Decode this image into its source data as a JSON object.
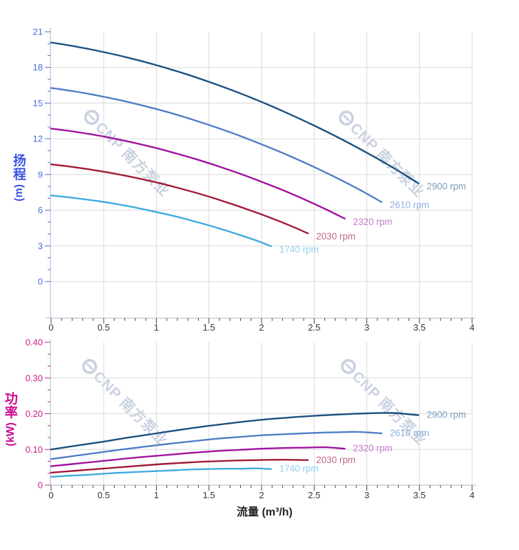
{
  "watermark": {
    "text": "CNP 南方泵业",
    "logo": "cnp-ring-logo",
    "color": "#c8d0e0"
  },
  "charts": [
    {
      "name": "head-curve-chart",
      "type": "line",
      "y_axis": {
        "title_chars": [
          "扬",
          "程"
        ],
        "unit": "(m)",
        "label_color": "#4a6cd9",
        "title_color": "#3c55e2",
        "tick_labels": [
          "0",
          "3",
          "6",
          "9",
          "12",
          "15",
          "18",
          "21"
        ],
        "tick_values": [
          0,
          3,
          6,
          9,
          12,
          15,
          18,
          21
        ],
        "minor_step": 1,
        "max": 21
      },
      "x_axis": {
        "tick_labels": [
          "0",
          "0.5",
          "1",
          "1.5",
          "2",
          "2.5",
          "3",
          "3.5",
          "4"
        ],
        "tick_values": [
          0,
          0.5,
          1,
          1.5,
          2,
          2.5,
          3,
          3.5,
          4
        ],
        "max": 4
      },
      "series": [
        {
          "label": "2900 rpm",
          "color": "#1a5080",
          "label_color": "#7d9cbe",
          "q": [
            0,
            0.25,
            0.5,
            0.75,
            1.0,
            1.25,
            1.5,
            1.75,
            2.0,
            2.25,
            2.5,
            2.75,
            3.0,
            3.25,
            3.49
          ],
          "v": [
            20.1,
            19.73,
            19.29,
            18.78,
            18.19,
            17.53,
            16.79,
            15.98,
            15.1,
            14.14,
            13.11,
            12.01,
            10.83,
            9.57,
            8.26
          ]
        },
        {
          "label": "2610 rpm",
          "color": "#4f7dc8",
          "label_color": "#91b0e0",
          "q": [
            0,
            0.225,
            0.45,
            0.675,
            0.9,
            1.125,
            1.35,
            1.575,
            1.8,
            2.025,
            2.25,
            2.475,
            2.7,
            2.925,
            3.14
          ],
          "v": [
            16.28,
            15.98,
            15.62,
            15.21,
            14.73,
            14.2,
            13.6,
            12.94,
            12.23,
            11.45,
            10.62,
            9.73,
            8.77,
            7.75,
            6.69
          ]
        },
        {
          "label": "2320 rpm",
          "color": "#a111a0",
          "label_color": "#c479ce",
          "q": [
            0,
            0.2,
            0.4,
            0.6,
            0.8,
            1.0,
            1.2,
            1.4,
            1.6,
            1.8,
            2.0,
            2.2,
            2.4,
            2.6,
            2.79
          ],
          "v": [
            12.86,
            12.63,
            12.35,
            12.02,
            11.64,
            11.22,
            10.74,
            10.23,
            9.66,
            9.05,
            8.39,
            7.69,
            6.93,
            6.12,
            5.29
          ]
        },
        {
          "label": "2030 rpm",
          "color": "#a01a38",
          "label_color": "#c2697f",
          "q": [
            0,
            0.175,
            0.35,
            0.525,
            0.7,
            0.875,
            1.05,
            1.225,
            1.4,
            1.575,
            1.75,
            1.925,
            2.1,
            2.275,
            2.44
          ],
          "v": [
            9.85,
            9.67,
            9.45,
            9.2,
            8.91,
            8.59,
            8.23,
            7.83,
            7.4,
            6.93,
            6.42,
            5.88,
            5.31,
            4.69,
            4.05
          ]
        },
        {
          "label": "1740 rpm",
          "color": "#3fabe0",
          "label_color": "#8fd0f0",
          "q": [
            0,
            0.15,
            0.3,
            0.45,
            0.6,
            0.75,
            0.9,
            1.05,
            1.2,
            1.35,
            1.5,
            1.65,
            1.8,
            1.95,
            2.09
          ],
          "v": [
            7.24,
            7.1,
            6.94,
            6.76,
            6.55,
            6.31,
            6.04,
            5.75,
            5.44,
            5.09,
            4.72,
            4.32,
            3.9,
            3.45,
            2.97
          ]
        }
      ]
    },
    {
      "name": "power-curve-chart",
      "type": "line",
      "y_axis": {
        "title_chars": [
          "功",
          "率"
        ],
        "unit": "(kW)",
        "label_color": "#cb1d8e",
        "title_color": "#cc0d92",
        "tick_labels": [
          "0",
          "0.10",
          "0.20",
          "0.30",
          "0.40"
        ],
        "tick_values": [
          0,
          0.1,
          0.2,
          0.3,
          0.4
        ],
        "max": 0.4
      },
      "x_axis": {
        "title": "流量 (m³/h)",
        "tick_labels": [
          "0",
          "0.5",
          "1",
          "1.5",
          "2",
          "2.5",
          "3",
          "3.5",
          "4"
        ],
        "tick_values": [
          0,
          0.5,
          1,
          1.5,
          2,
          2.5,
          3,
          3.5,
          4
        ],
        "max": 4
      },
      "series": [
        {
          "label": "2900 rpm",
          "color": "#1a5080",
          "label_color": "#7d9cbe",
          "q": [
            0,
            0.25,
            0.5,
            0.75,
            1.0,
            1.25,
            1.5,
            1.75,
            2.0,
            2.25,
            2.5,
            2.75,
            3.0,
            3.25,
            3.49
          ],
          "v": [
            0.1,
            0.111,
            0.122,
            0.134,
            0.145,
            0.156,
            0.166,
            0.175,
            0.183,
            0.189,
            0.194,
            0.198,
            0.201,
            0.202,
            0.196
          ]
        },
        {
          "label": "2610 rpm",
          "color": "#4f7dc8",
          "label_color": "#91b0e0",
          "q": [
            0,
            0.225,
            0.45,
            0.675,
            0.9,
            1.125,
            1.35,
            1.575,
            1.8,
            2.025,
            2.25,
            2.475,
            2.7,
            2.925,
            3.14
          ],
          "v": [
            0.073,
            0.082,
            0.091,
            0.1,
            0.108,
            0.116,
            0.123,
            0.13,
            0.135,
            0.14,
            0.143,
            0.146,
            0.148,
            0.149,
            0.145
          ]
        },
        {
          "label": "2320 rpm",
          "color": "#a111a0",
          "label_color": "#c479ce",
          "q": [
            0,
            0.2,
            0.4,
            0.6,
            0.8,
            1.0,
            1.2,
            1.4,
            1.6,
            1.8,
            2.0,
            2.2,
            2.4,
            2.6,
            2.79
          ],
          "v": [
            0.053,
            0.059,
            0.065,
            0.071,
            0.077,
            0.082,
            0.087,
            0.092,
            0.096,
            0.099,
            0.102,
            0.104,
            0.105,
            0.106,
            0.102
          ]
        },
        {
          "label": "2030 rpm",
          "color": "#a01a38",
          "label_color": "#c2697f",
          "q": [
            0,
            0.175,
            0.35,
            0.525,
            0.7,
            0.875,
            1.05,
            1.225,
            1.4,
            1.575,
            1.75,
            1.925,
            2.1,
            2.275,
            2.44
          ],
          "v": [
            0.035,
            0.039,
            0.043,
            0.047,
            0.051,
            0.055,
            0.059,
            0.062,
            0.065,
            0.067,
            0.069,
            0.07,
            0.071,
            0.071,
            0.07
          ]
        },
        {
          "label": "1740 rpm",
          "color": "#3fabe0",
          "label_color": "#8fd0f0",
          "q": [
            0,
            0.15,
            0.3,
            0.45,
            0.6,
            0.75,
            0.9,
            1.05,
            1.2,
            1.35,
            1.5,
            1.65,
            1.8,
            1.95,
            2.09
          ],
          "v": [
            0.023,
            0.026,
            0.028,
            0.031,
            0.034,
            0.036,
            0.038,
            0.04,
            0.042,
            0.044,
            0.045,
            0.046,
            0.046,
            0.047,
            0.045
          ]
        }
      ]
    }
  ]
}
